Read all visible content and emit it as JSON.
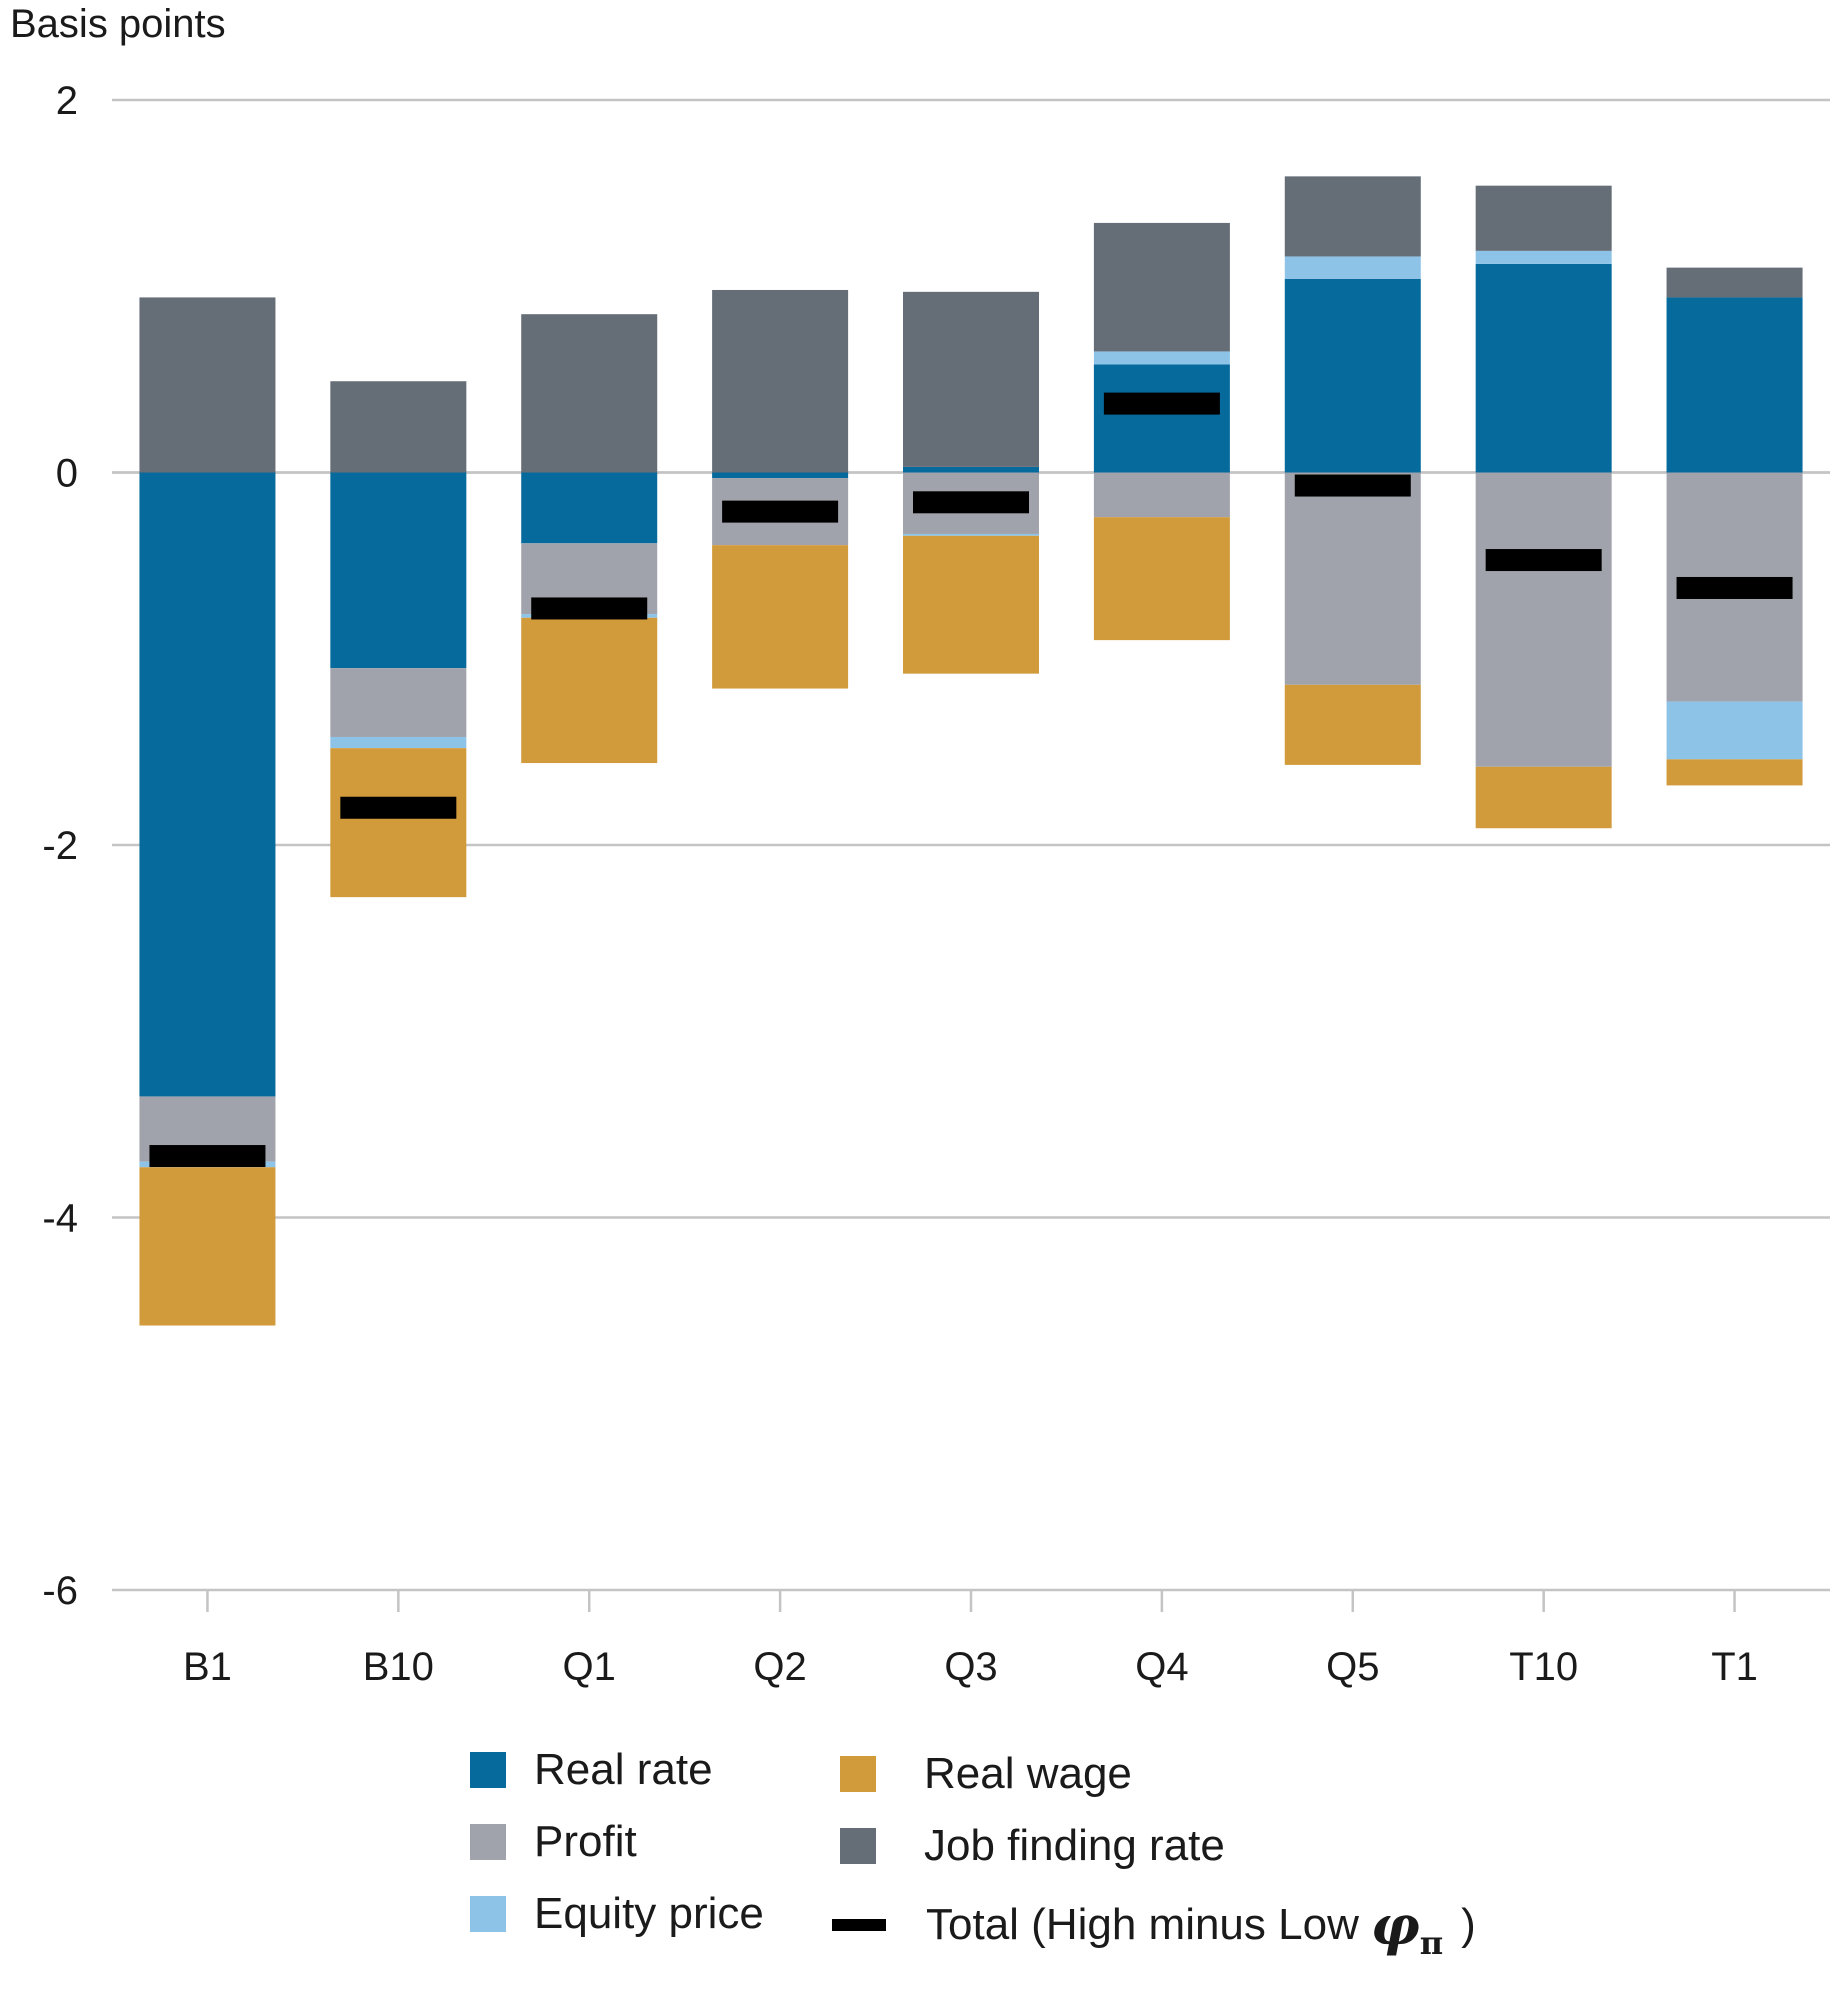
{
  "chart_data": {
    "type": "bar",
    "stacked": true,
    "ylabel": "Basis points",
    "ylim": [
      -6,
      2
    ],
    "yticks": [
      "2",
      "0",
      "-2",
      "-4",
      "-6"
    ],
    "ytick_values": [
      2,
      0,
      -2,
      -4,
      -6
    ],
    "grid": true,
    "categories": [
      "B1",
      "B10",
      "Q1",
      "Q2",
      "Q3",
      "Q4",
      "Q5",
      "T10",
      "T1"
    ],
    "series": [
      {
        "name": "Real rate",
        "color": "#066a9c",
        "values": [
          -3.35,
          -1.05,
          -0.38,
          -0.03,
          0.03,
          0.58,
          1.04,
          1.12,
          0.94
        ]
      },
      {
        "name": "Profit",
        "color": "#a0a3ab",
        "values": [
          -0.35,
          -0.37,
          -0.38,
          -0.36,
          -0.33,
          -0.24,
          -1.14,
          -1.58,
          -1.23
        ]
      },
      {
        "name": "Equity price",
        "color": "#8ec3e8",
        "values": [
          -0.03,
          -0.06,
          -0.02,
          0.0,
          -0.01,
          0.07,
          0.12,
          0.07,
          -0.31
        ]
      },
      {
        "name": "Real wage",
        "color": "#d19b3c",
        "values": [
          -0.85,
          -0.8,
          -0.78,
          -0.77,
          -0.74,
          -0.66,
          -0.43,
          -0.33,
          -0.14
        ]
      },
      {
        "name": "Job finding rate",
        "color": "#656d77",
        "values": [
          0.94,
          0.49,
          0.85,
          0.98,
          0.94,
          0.69,
          0.43,
          0.35,
          0.16
        ]
      }
    ],
    "total": {
      "name": "Total (High minus Low",
      "values": [
        -3.67,
        -1.8,
        -0.73,
        -0.21,
        -0.16,
        0.37,
        -0.07,
        -0.47,
        -0.62
      ]
    },
    "legend": {
      "position": "bottom",
      "phi_symbol": "φ",
      "pi_symbol": "π",
      "close_paren": ")"
    }
  }
}
